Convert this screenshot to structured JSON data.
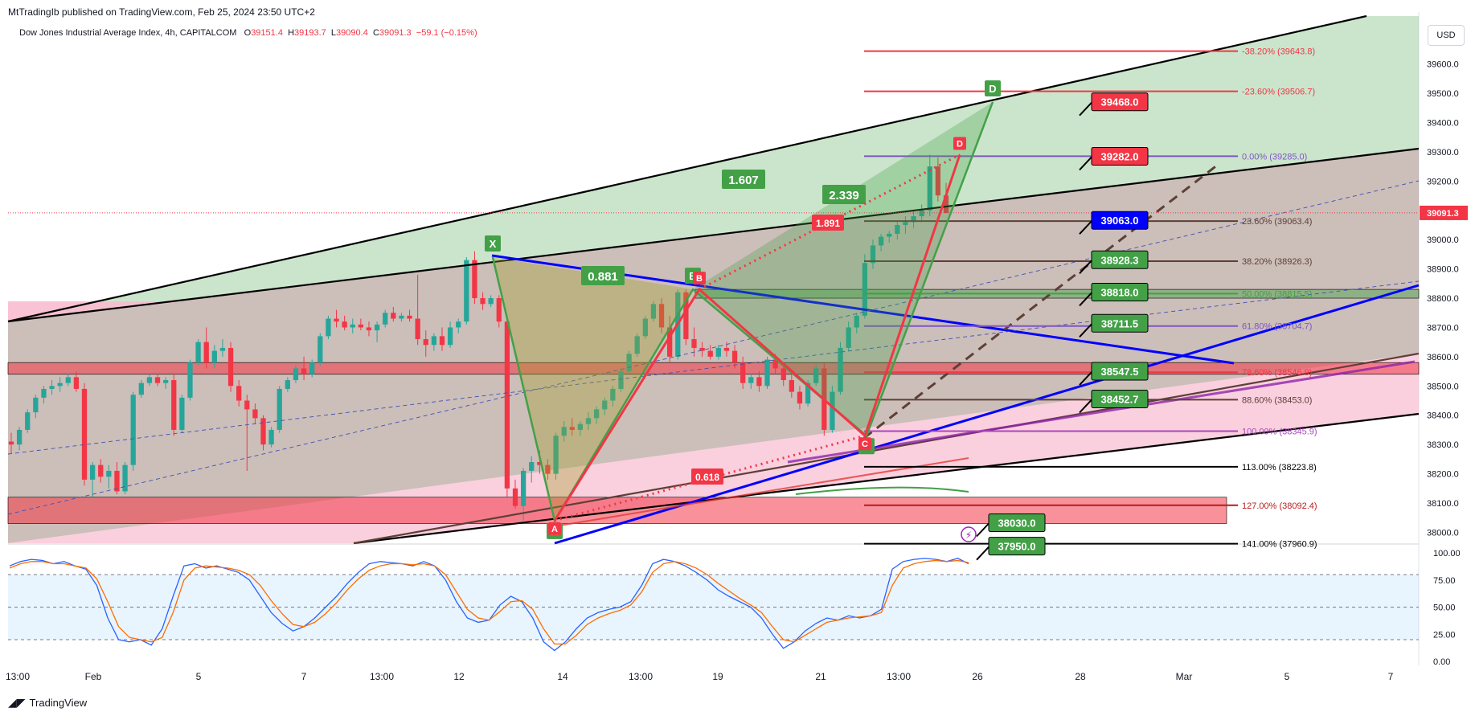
{
  "header": {
    "published": "MtTradingIb published on TradingView.com, Feb 25, 2024 23:50 UTC+2"
  },
  "legend": {
    "symbol": "Dow Jones Industrial Average Index, 4h, CAPITALCOM",
    "o_label": "O",
    "o": "39151.4",
    "h_label": "H",
    "h": "39193.7",
    "l_label": "L",
    "l": "39090.4",
    "c_label": "C",
    "c": "39091.3",
    "change": "−59.1 (−0.15%)"
  },
  "currency_button": "USD",
  "footer": {
    "brand": "TradingView",
    "logo": "tradingview-logo-icon"
  },
  "colors": {
    "up": "#26a69a",
    "down": "#f23645",
    "green_box": "#43a047",
    "red_box": "#f23645",
    "blue_box": "#0000ff",
    "stoch_k": "#2962ff",
    "stoch_d": "#ff6d00"
  },
  "chart_data": [
    {
      "type": "candlestick",
      "title": "",
      "interval": "4h",
      "y_axis": {
        "ticks": [
          "39600.0",
          "39500.0",
          "39400.0",
          "39300.0",
          "39200.0",
          "39100.0",
          "39000.0",
          "38900.0",
          "38800.0",
          "38700.0",
          "38600.0",
          "38500.0",
          "38400.0",
          "38300.0",
          "38200.0",
          "38100.0",
          "38000.0"
        ],
        "range": [
          37960,
          39750
        ]
      },
      "x_axis": {
        "ticks": [
          "13:00",
          "Feb",
          "5",
          "7",
          "13:00",
          "12",
          "14",
          "13:00",
          "19",
          "21",
          "13:00",
          "26",
          "28",
          "Mar",
          "5",
          "7"
        ]
      },
      "last_price": {
        "label": "39091.3",
        "value": 39091.3
      },
      "candles": [
        [
          38310,
          38340,
          38270,
          38300
        ],
        [
          38300,
          38360,
          38280,
          38350
        ],
        [
          38350,
          38420,
          38340,
          38410
        ],
        [
          38410,
          38470,
          38390,
          38460
        ],
        [
          38460,
          38500,
          38440,
          38490
        ],
        [
          38490,
          38520,
          38470,
          38500
        ],
        [
          38500,
          38530,
          38480,
          38510
        ],
        [
          38510,
          38540,
          38500,
          38530
        ],
        [
          38530,
          38550,
          38480,
          38490
        ],
        [
          38490,
          38510,
          38160,
          38180
        ],
        [
          38180,
          38240,
          38120,
          38230
        ],
        [
          38230,
          38250,
          38170,
          38190
        ],
        [
          38190,
          38230,
          38150,
          38210
        ],
        [
          38210,
          38240,
          38130,
          38140
        ],
        [
          38140,
          38240,
          38130,
          38230
        ],
        [
          38230,
          38480,
          38210,
          38470
        ],
        [
          38470,
          38520,
          38460,
          38510
        ],
        [
          38510,
          38540,
          38500,
          38530
        ],
        [
          38530,
          38540,
          38500,
          38510
        ],
        [
          38510,
          38530,
          38490,
          38520
        ],
        [
          38520,
          38540,
          38330,
          38350
        ],
        [
          38350,
          38470,
          38340,
          38460
        ],
        [
          38460,
          38590,
          38450,
          38580
        ],
        [
          38580,
          38660,
          38570,
          38650
        ],
        [
          38650,
          38700,
          38560,
          38580
        ],
        [
          38580,
          38640,
          38560,
          38620
        ],
        [
          38620,
          38660,
          38600,
          38630
        ],
        [
          38630,
          38650,
          38480,
          38500
        ],
        [
          38500,
          38520,
          38430,
          38450
        ],
        [
          38450,
          38470,
          38210,
          38420
        ],
        [
          38420,
          38440,
          38370,
          38390
        ],
        [
          38390,
          38400,
          38280,
          38300
        ],
        [
          38300,
          38360,
          38290,
          38350
        ],
        [
          38350,
          38500,
          38340,
          38490
        ],
        [
          38490,
          38530,
          38480,
          38520
        ],
        [
          38520,
          38570,
          38510,
          38560
        ],
        [
          38560,
          38600,
          38520,
          38540
        ],
        [
          38540,
          38590,
          38530,
          38580
        ],
        [
          38580,
          38680,
          38570,
          38670
        ],
        [
          38670,
          38740,
          38660,
          38730
        ],
        [
          38730,
          38760,
          38700,
          38720
        ],
        [
          38720,
          38740,
          38690,
          38700
        ],
        [
          38700,
          38730,
          38680,
          38710
        ],
        [
          38710,
          38730,
          38690,
          38700
        ],
        [
          38700,
          38720,
          38670,
          38690
        ],
        [
          38690,
          38720,
          38650,
          38710
        ],
        [
          38710,
          38760,
          38700,
          38750
        ],
        [
          38750,
          38770,
          38720,
          38730
        ],
        [
          38730,
          38750,
          38720,
          38740
        ],
        [
          38740,
          38760,
          38720,
          38730
        ],
        [
          38730,
          38880,
          38640,
          38660
        ],
        [
          38660,
          38690,
          38600,
          38640
        ],
        [
          38640,
          38680,
          38620,
          38670
        ],
        [
          38670,
          38700,
          38620,
          38640
        ],
        [
          38640,
          38720,
          38630,
          38700
        ],
        [
          38700,
          38730,
          38680,
          38720
        ],
        [
          38720,
          38940,
          38710,
          38930
        ],
        [
          38930,
          38960,
          38780,
          38800
        ],
        [
          38800,
          38820,
          38760,
          38780
        ],
        [
          38780,
          38810,
          38770,
          38800
        ],
        [
          38800,
          38810,
          38700,
          38720
        ],
        [
          38720,
          38740,
          38120,
          38150
        ],
        [
          38150,
          38180,
          38080,
          38090
        ],
        [
          38090,
          38220,
          38040,
          38210
        ],
        [
          38210,
          38260,
          38170,
          38240
        ],
        [
          38240,
          38280,
          38200,
          38230
        ],
        [
          38230,
          38250,
          38180,
          38200
        ],
        [
          38200,
          38340,
          38180,
          38330
        ],
        [
          38330,
          38380,
          38310,
          38360
        ],
        [
          38360,
          38390,
          38330,
          38350
        ],
        [
          38350,
          38380,
          38330,
          38370
        ],
        [
          38370,
          38410,
          38350,
          38390
        ],
        [
          38390,
          38430,
          38370,
          38420
        ],
        [
          38420,
          38460,
          38400,
          38450
        ],
        [
          38450,
          38500,
          38430,
          38490
        ],
        [
          38490,
          38560,
          38480,
          38550
        ],
        [
          38550,
          38620,
          38540,
          38610
        ],
        [
          38610,
          38680,
          38600,
          38670
        ],
        [
          38670,
          38740,
          38660,
          38730
        ],
        [
          38730,
          38790,
          38720,
          38780
        ],
        [
          38780,
          38800,
          38680,
          38700
        ],
        [
          38700,
          38740,
          38580,
          38600
        ],
        [
          38600,
          38830,
          38590,
          38820
        ],
        [
          38820,
          38830,
          38640,
          38660
        ],
        [
          38660,
          38700,
          38600,
          38630
        ],
        [
          38630,
          38650,
          38600,
          38620
        ],
        [
          38620,
          38640,
          38590,
          38600
        ],
        [
          38600,
          38640,
          38590,
          38630
        ],
        [
          38630,
          38650,
          38600,
          38620
        ],
        [
          38620,
          38640,
          38560,
          38580
        ],
        [
          38580,
          38600,
          38490,
          38510
        ],
        [
          38510,
          38540,
          38490,
          38530
        ],
        [
          38530,
          38550,
          38480,
          38500
        ],
        [
          38500,
          38600,
          38490,
          38590
        ],
        [
          38590,
          38610,
          38540,
          38560
        ],
        [
          38560,
          38580,
          38500,
          38520
        ],
        [
          38520,
          38540,
          38460,
          38480
        ],
        [
          38480,
          38500,
          38420,
          38440
        ],
        [
          38440,
          38520,
          38430,
          38510
        ],
        [
          38510,
          38570,
          38500,
          38560
        ],
        [
          38560,
          38580,
          38330,
          38350
        ],
        [
          38350,
          38500,
          38340,
          38480
        ],
        [
          38480,
          38650,
          38470,
          38630
        ],
        [
          38630,
          38720,
          38620,
          38700
        ],
        [
          38700,
          38750,
          38680,
          38740
        ],
        [
          38740,
          38950,
          38730,
          38920
        ],
        [
          38920,
          39000,
          38900,
          38980
        ],
        [
          38980,
          39020,
          38960,
          39010
        ],
        [
          39010,
          39030,
          38990,
          39020
        ],
        [
          39020,
          39060,
          39000,
          39050
        ],
        [
          39050,
          39080,
          39020,
          39060
        ],
        [
          39060,
          39100,
          39040,
          39080
        ],
        [
          39080,
          39120,
          39060,
          39100
        ],
        [
          39100,
          39290,
          39080,
          39250
        ],
        [
          39250,
          39280,
          39130,
          39151
        ],
        [
          39151,
          39194,
          39090,
          39091
        ]
      ],
      "fibonacci": [
        {
          "level": "-38.20%",
          "price": "39643.8",
          "color": "#f23645"
        },
        {
          "level": "-23.60%",
          "price": "39506.7",
          "color": "#f23645"
        },
        {
          "level": "0.00%",
          "price": "39285.0",
          "color": "#7e57c2"
        },
        {
          "level": "23.60%",
          "price": "39063.4",
          "color": "#5d4037"
        },
        {
          "level": "38.20%",
          "price": "38926.3",
          "color": "#5d4037"
        },
        {
          "level": "50.00%",
          "price": "38815.5",
          "color": "#43a047"
        },
        {
          "level": "61.80%",
          "price": "38704.7",
          "color": "#7e57c2"
        },
        {
          "level": "78.60%",
          "price": "38546.9",
          "color": "#f23645"
        },
        {
          "level": "88.60%",
          "price": "38453.0",
          "color": "#5d4037"
        },
        {
          "level": "100.00%",
          "price": "38345.9",
          "color": "#ab47bc"
        },
        {
          "level": "113.00%",
          "price": "38223.8",
          "color": "#000000"
        },
        {
          "level": "127.00%",
          "price": "38092.4",
          "color": "#b71c1c"
        },
        {
          "level": "141.00%",
          "price": "37960.9",
          "color": "#000000"
        }
      ],
      "price_boxes": [
        {
          "label": "39468.0",
          "value": 39468.0,
          "color": "#f23645"
        },
        {
          "label": "39282.0",
          "value": 39282.0,
          "color": "#f23645"
        },
        {
          "label": "39063.0",
          "value": 39063.0,
          "color": "#0000ff"
        },
        {
          "label": "38928.3",
          "value": 38928.3,
          "color": "#43a047"
        },
        {
          "label": "38818.0",
          "value": 38818.0,
          "color": "#43a047"
        },
        {
          "label": "38711.5",
          "value": 38711.5,
          "color": "#43a047"
        },
        {
          "label": "38547.5",
          "value": 38547.5,
          "color": "#43a047"
        },
        {
          "label": "38452.7",
          "value": 38452.7,
          "color": "#43a047"
        },
        {
          "label": "38030.0",
          "value": 38030.0,
          "color": "#43a047"
        },
        {
          "label": "37950.0",
          "value": 37950.0,
          "color": "#43a047"
        }
      ],
      "pattern_green": {
        "points": [
          {
            "label": "X",
            "price": 38940
          },
          {
            "label": "A",
            "price": 38040
          },
          {
            "label": "B",
            "price": 38830
          },
          {
            "label": "C",
            "price": 38330
          },
          {
            "label": "D",
            "price": 39470
          }
        ],
        "ratios": [
          "0.881",
          "1.607",
          "2.339"
        ]
      },
      "pattern_red": {
        "points": [
          {
            "label": "A",
            "price": 38040
          },
          {
            "label": "B",
            "price": 38830
          },
          {
            "label": "C",
            "price": 38330
          },
          {
            "label": "D",
            "price": 39290
          }
        ],
        "ratios": [
          "1.891",
          "0.618"
        ]
      }
    },
    {
      "type": "line",
      "title": "",
      "y_axis": {
        "ticks": [
          "100.00",
          "75.00",
          "50.00",
          "25.00",
          "0.00"
        ],
        "range": [
          0,
          100
        ]
      },
      "bands": [
        20,
        50,
        80
      ],
      "series": [
        {
          "name": "",
          "color": "#2962ff",
          "values": [
            88,
            92,
            94,
            93,
            90,
            92,
            88,
            85,
            70,
            40,
            20,
            18,
            20,
            15,
            30,
            60,
            88,
            90,
            86,
            88,
            85,
            82,
            75,
            60,
            45,
            35,
            28,
            32,
            40,
            50,
            60,
            72,
            82,
            90,
            92,
            91,
            90,
            88,
            92,
            88,
            75,
            55,
            40,
            36,
            38,
            52,
            60,
            55,
            40,
            18,
            10,
            18,
            30,
            40,
            45,
            48,
            50,
            55,
            70,
            90,
            94,
            92,
            88,
            82,
            75,
            66,
            60,
            55,
            50,
            40,
            25,
            12,
            18,
            28,
            35,
            40,
            38,
            42,
            40,
            42,
            48,
            85,
            92,
            94,
            95,
            94,
            92,
            95,
            90
          ]
        },
        {
          "name": "",
          "color": "#ff6d00",
          "values": [
            86,
            90,
            92,
            92,
            90,
            90,
            88,
            86,
            76,
            55,
            32,
            22,
            20,
            18,
            22,
            45,
            75,
            86,
            88,
            87,
            86,
            84,
            80,
            70,
            56,
            44,
            34,
            32,
            36,
            44,
            54,
            66,
            76,
            84,
            88,
            90,
            90,
            89,
            90,
            88,
            80,
            64,
            48,
            40,
            38,
            46,
            55,
            56,
            48,
            30,
            16,
            16,
            24,
            34,
            40,
            44,
            47,
            52,
            64,
            82,
            90,
            92,
            90,
            86,
            80,
            72,
            65,
            58,
            52,
            45,
            32,
            20,
            18,
            24,
            30,
            36,
            38,
            40,
            41,
            42,
            45,
            70,
            86,
            90,
            92,
            93,
            92,
            93,
            91
          ]
        }
      ]
    }
  ]
}
